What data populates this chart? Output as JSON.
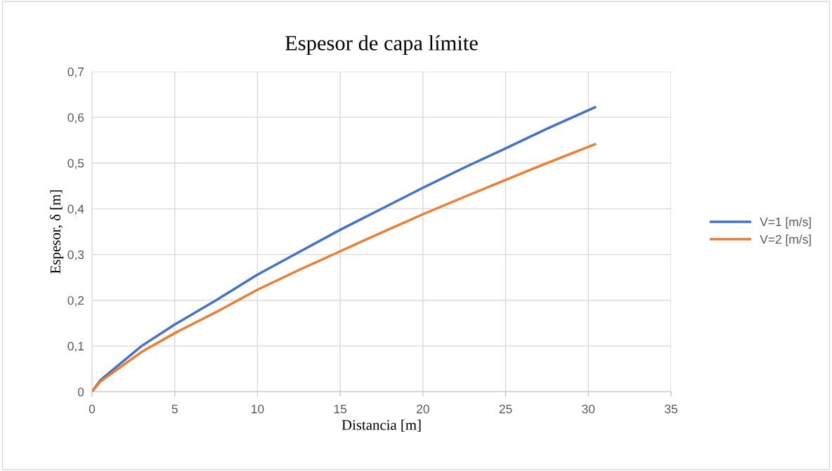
{
  "chart_data": {
    "type": "line",
    "title": "Espesor de capa límite",
    "xlabel": "Distancia [m]",
    "ylabel": "Espesor, δ [m]",
    "xlim": [
      0,
      35
    ],
    "xticks": [
      0,
      5,
      10,
      15,
      20,
      25,
      30,
      35
    ],
    "ylim": [
      0,
      0.7
    ],
    "yticks": [
      {
        "value": 0,
        "label": "0"
      },
      {
        "value": 0.1,
        "label": "0,1"
      },
      {
        "value": 0.2,
        "label": "0,2"
      },
      {
        "value": 0.3,
        "label": "0,3"
      },
      {
        "value": 0.4,
        "label": "0,4"
      },
      {
        "value": 0.5,
        "label": "0,5"
      },
      {
        "value": 0.6,
        "label": "0,6"
      },
      {
        "value": 0.7,
        "label": "0,7"
      }
    ],
    "x": [
      0,
      0.5,
      1,
      2,
      3,
      5,
      7.5,
      10,
      12.5,
      15,
      17.5,
      20,
      22.5,
      25,
      27.5,
      30.4
    ],
    "series": [
      {
        "name": "V=1 [m/s]",
        "color": "#4472c4",
        "values": [
          0,
          0.025,
          0.04,
          0.07,
          0.1,
          0.147,
          0.2,
          0.256,
          0.305,
          0.354,
          0.4,
          0.446,
          0.49,
          0.532,
          0.575,
          0.622
        ]
      },
      {
        "name": "V=2 [m/s]",
        "color": "#ed7d31",
        "values": [
          0,
          0.022,
          0.035,
          0.061,
          0.087,
          0.128,
          0.174,
          0.223,
          0.266,
          0.307,
          0.348,
          0.388,
          0.426,
          0.463,
          0.5,
          0.541
        ]
      }
    ],
    "grid": true,
    "legend": "right",
    "marker": "none",
    "line_style": "solid"
  }
}
